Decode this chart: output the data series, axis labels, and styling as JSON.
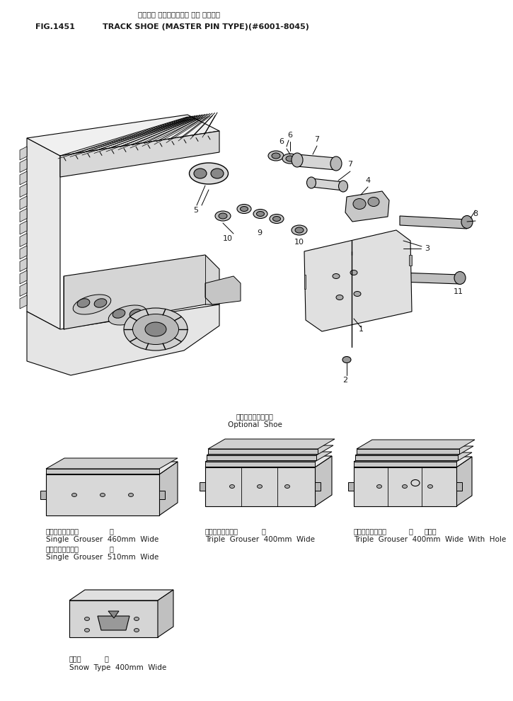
{
  "title_japanese": "トラック シュー（マスタ ピン タイプ）",
  "title_english": "TRACK SHOE (MASTER PIN TYPE)(#6001-8045)",
  "fig_number": "FIG.1451",
  "text_color": "#1a1a1a",
  "optional_shoe_jp": "オプショナルシュー",
  "optional_shoe_en": "Optional  Shoe",
  "labels": {
    "single_grouser_jp1": "シングルグローサ",
    "single_grouser_en1": "Single  Grouser  460mm  Wide",
    "single_grouser_jp2": "シングルグローサ",
    "single_grouser_en2": "Single  Grouser  510mm  Wide",
    "triple_grouser_jp1": "トリプルグローサ",
    "triple_grouser_en1": "Triple  Grouser  400mm  Wide",
    "triple_grouser_jp2": "トリプルグローサ",
    "triple_grouser_en2": "Triple  Grouser  400mm  Wide  With  Hole",
    "snow_jp": "雪上用",
    "snow_en": "Snow  Type  400mm  Wide",
    "width_kanji": "幅",
    "hole_kanji": "穴あき"
  }
}
